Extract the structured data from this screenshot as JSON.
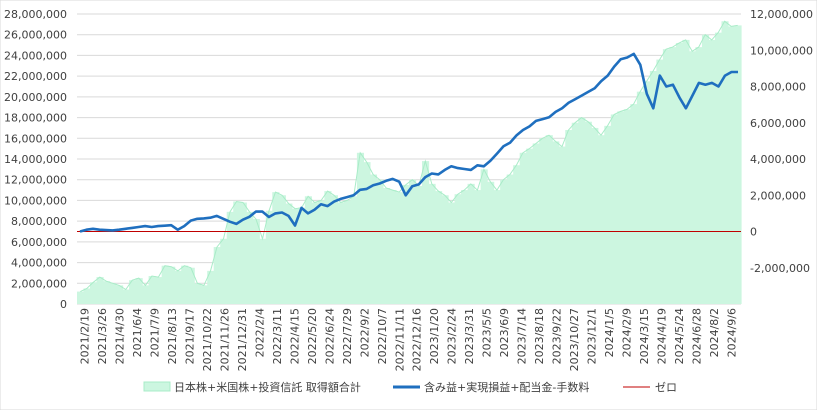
{
  "chart_data": {
    "type": "area",
    "colors": {
      "area_fill": "#ccf6e0",
      "area_edge": "#a9ecc8",
      "profit_line": "#1f6fbf",
      "zero_line": "#c00000",
      "grid": "#d9d9d9",
      "axis_text": "#404040"
    },
    "left_axis": {
      "ylim": [
        0,
        28000000
      ],
      "tick_labels": [
        "0",
        "2,000,000",
        "4,000,000",
        "6,000,000",
        "8,000,000",
        "10,000,000",
        "12,000,000",
        "14,000,000",
        "16,000,000",
        "18,000,000",
        "20,000,000",
        "22,000,000",
        "24,000,000",
        "26,000,000",
        "28,000,000"
      ]
    },
    "right_axis": {
      "ylim": [
        -4000000,
        12000000
      ],
      "tick_labels": [
        "-2,000,000",
        "0",
        "2,000,000",
        "4,000,000",
        "6,000,000",
        "8,000,000",
        "10,000,000",
        "12,000,000"
      ]
    },
    "x_tick_labels": [
      "2021/2/19",
      "2021/3/26",
      "2021/4/30",
      "2021/6/4",
      "2021/7/9",
      "2021/8/13",
      "2021/9/17",
      "2021/10/22",
      "2021/11/26",
      "2021/12/31",
      "2022/2/4",
      "2022/3/11",
      "2022/4/15",
      "2022/5/20",
      "2022/6/24",
      "2022/7/29",
      "2022/9/2",
      "2022/10/7",
      "2022/11/11",
      "2022/12/16",
      "2023/1/20",
      "2023/2/24",
      "2023/3/31",
      "2023/5/5",
      "2023/6/9",
      "2023/7/14",
      "2023/8/18",
      "2023/9/22",
      "2023/10/27",
      "2023/12/1",
      "2024/1/5",
      "2024/2/9",
      "2024/3/15",
      "2024/4/19",
      "2024/5/24",
      "2024/6/28",
      "2024/8/2",
      "2024/9/6"
    ],
    "series": [
      {
        "name": "日本株+米国株+投資信託 取得額合計",
        "axis": "left",
        "type": "area",
        "values": [
          1200000,
          1500000,
          2100000,
          2600000,
          2200000,
          2000000,
          1800000,
          1400000,
          2300000,
          2500000,
          1800000,
          2700000,
          2600000,
          3700000,
          3600000,
          3200000,
          3700000,
          3500000,
          2000000,
          1800000,
          3200000,
          5500000,
          6300000,
          8900000,
          9900000,
          9800000,
          8900000,
          8200000,
          6300000,
          9000000,
          10800000,
          10500000,
          9700000,
          9200000,
          9300000,
          10400000,
          9800000,
          10000000,
          10900000,
          10500000,
          9800000,
          10000000,
          10400000,
          14600000,
          13700000,
          12500000,
          12000000,
          11200000,
          11000000,
          10800000,
          11500000,
          12000000,
          11400000,
          13800000,
          11600000,
          10900000,
          10500000,
          9800000,
          10600000,
          11000000,
          11600000,
          11000000,
          13000000,
          11800000,
          11000000,
          12000000,
          12500000,
          13400000,
          14600000,
          15000000,
          15500000,
          16000000,
          16300000,
          15700000,
          15200000,
          16800000,
          17500000,
          18000000,
          17600000,
          17000000,
          16300000,
          17200000,
          18300000,
          18600000,
          18800000,
          19300000,
          20500000,
          21500000,
          22500000,
          23600000,
          24600000,
          24800000,
          25200000,
          25500000,
          24400000,
          24800000,
          26000000,
          25500000,
          26200000,
          27300000,
          26800000,
          26900000
        ]
      },
      {
        "name": "含み益+実現損益+配当金-手数料",
        "axis": "right",
        "type": "line",
        "values": [
          0,
          100000,
          150000,
          100000,
          80000,
          60000,
          100000,
          150000,
          200000,
          250000,
          300000,
          250000,
          300000,
          320000,
          350000,
          100000,
          300000,
          600000,
          700000,
          720000,
          760000,
          860000,
          700000,
          540000,
          420000,
          650000,
          810000,
          1100000,
          1100000,
          800000,
          1000000,
          1050000,
          860000,
          330000,
          1300000,
          1000000,
          1200000,
          1500000,
          1400000,
          1650000,
          1800000,
          1900000,
          2000000,
          2300000,
          2350000,
          2550000,
          2650000,
          2800000,
          2900000,
          2750000,
          2000000,
          2500000,
          2600000,
          3000000,
          3200000,
          3150000,
          3400000,
          3600000,
          3500000,
          3450000,
          3400000,
          3650000,
          3600000,
          3900000,
          4300000,
          4700000,
          4900000,
          5300000,
          5600000,
          5800000,
          6100000,
          6200000,
          6300000,
          6600000,
          6800000,
          7100000,
          7300000,
          7500000,
          7700000,
          7900000,
          8300000,
          8600000,
          9100000,
          9500000,
          9600000,
          9800000,
          9200000,
          7600000,
          6800000,
          8600000,
          8000000,
          8100000,
          7400000,
          6800000,
          7500000,
          8200000,
          8100000,
          8200000,
          8000000,
          8600000,
          8800000,
          8800000
        ]
      },
      {
        "name": "ゼロ",
        "axis": "right",
        "type": "line",
        "values": [
          0,
          0
        ]
      }
    ],
    "legend_position": "bottom",
    "grid": true
  }
}
